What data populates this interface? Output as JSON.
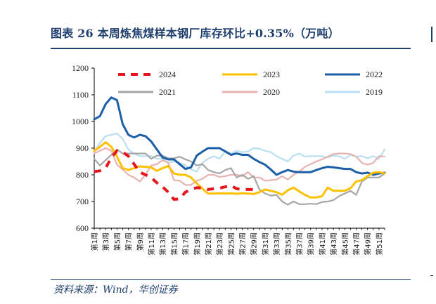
{
  "title": "图表 26  本周炼焦煤样本钢厂库存环比+0.35%（万吨）",
  "source": "资料来源：Wind，华创证券",
  "chart_data": {
    "type": "line",
    "title": "",
    "xlabel": "",
    "ylabel": "",
    "ylim": [
      600,
      1200
    ],
    "yticks": [
      600,
      700,
      800,
      900,
      1000,
      1100,
      1200
    ],
    "grid": false,
    "legend_position": "top",
    "x": [
      "第1周",
      "第2周",
      "第3周",
      "第4周",
      "第5周",
      "第6周",
      "第7周",
      "第8周",
      "第9周",
      "第10周",
      "第11周",
      "第12周",
      "第13周",
      "第14周",
      "第15周",
      "第16周",
      "第17周",
      "第18周",
      "第19周",
      "第20周",
      "第21周",
      "第22周",
      "第23周",
      "第24周",
      "第25周",
      "第26周",
      "第27周",
      "第28周",
      "第29周",
      "第30周",
      "第31周",
      "第32周",
      "第33周",
      "第34周",
      "第35周",
      "第36周",
      "第37周",
      "第38周",
      "第39周",
      "第40周",
      "第41周",
      "第42周",
      "第43周",
      "第44周",
      "第45周",
      "第46周",
      "第47周",
      "第48周",
      "第49周",
      "第50周",
      "第51周",
      "第52周"
    ],
    "x_tick_labels": [
      "第1周",
      "第3周",
      "第5周",
      "第7周",
      "第9周",
      "第11周",
      "第13周",
      "第15周",
      "第17周",
      "第19周",
      "第21周",
      "第23周",
      "第25周",
      "第27周",
      "第29周",
      "第31周",
      "第33周",
      "第35周",
      "第37周",
      "第39周",
      "第41周",
      "第43周",
      "第45周",
      "第47周",
      "第49周",
      "第51周"
    ],
    "series": [
      {
        "name": "2024",
        "color": "#e8141c",
        "dash": "dashed",
        "values": [
          812,
          815,
          825,
          865,
          890,
          885,
          870,
          840,
          810,
          800,
          790,
          770,
          755,
          735,
          708,
          710,
          735,
          745,
          752,
          750,
          745,
          748,
          750,
          755,
          760,
          748,
          745,
          745,
          745,
          null,
          null,
          null,
          null,
          null,
          null,
          null,
          null,
          null,
          null,
          null,
          null,
          null,
          null,
          null,
          null,
          null,
          null,
          null,
          null,
          null,
          null,
          null
        ]
      },
      {
        "name": "2023",
        "color": "#ffc000",
        "dash": "solid",
        "values": [
          890,
          905,
          922,
          905,
          868,
          825,
          818,
          825,
          832,
          830,
          828,
          815,
          825,
          833,
          805,
          800,
          800,
          790,
          768,
          748,
          730,
          730,
          731,
          730,
          731,
          729,
          731,
          730,
          728,
          735,
          745,
          740,
          735,
          725,
          742,
          752,
          738,
          725,
          715,
          715,
          720,
          752,
          740,
          740,
          740,
          750,
          775,
          780,
          795,
          808,
          810,
          805
        ]
      },
      {
        "name": "2022",
        "color": "#1c5fa8",
        "dash": "solid",
        "values": [
          1008,
          1020,
          1065,
          1090,
          1080,
          990,
          950,
          940,
          950,
          945,
          925,
          895,
          865,
          858,
          858,
          840,
          822,
          828,
          872,
          887,
          900,
          900,
          900,
          888,
          875,
          880,
          875,
          875,
          860,
          848,
          838,
          820,
          800,
          810,
          818,
          812,
          810,
          810,
          810,
          818,
          825,
          830,
          828,
          825,
          822,
          822,
          810,
          805,
          808,
          800,
          805,
          808
        ]
      },
      {
        "name": "2021",
        "color": "#a6a6a6",
        "dash": "solid",
        "values": [
          860,
          835,
          855,
          875,
          895,
          880,
          880,
          880,
          880,
          880,
          860,
          872,
          872,
          862,
          862,
          868,
          858,
          850,
          835,
          840,
          818,
          810,
          805,
          818,
          825,
          790,
          800,
          785,
          795,
          745,
          730,
          722,
          725,
          700,
          688,
          700,
          690,
          690,
          692,
          690,
          698,
          700,
          705,
          720,
          730,
          740,
          725,
          775,
          790,
          790,
          790,
          805
        ]
      },
      {
        "name": "2020",
        "color": "#e8b2b2",
        "dash": "solid",
        "values": [
          880,
          890,
          900,
          890,
          838,
          820,
          800,
          790,
          775,
          800,
          835,
          840,
          855,
          845,
          780,
          778,
          762,
          762,
          778,
          785,
          800,
          800,
          792,
          795,
          800,
          800,
          795,
          810,
          790,
          790,
          778,
          780,
          782,
          795,
          782,
          800,
          812,
          830,
          840,
          850,
          858,
          868,
          878,
          880,
          880,
          878,
          868,
          845,
          838,
          845,
          870,
          868
        ]
      },
      {
        "name": "2019",
        "color": "#b9dff0",
        "dash": "solid",
        "values": [
          885,
          920,
          945,
          950,
          955,
          935,
          895,
          880,
          870,
          870,
          870,
          860,
          860,
          845,
          850,
          845,
          835,
          820,
          812,
          845,
          860,
          870,
          860,
          888,
          880,
          890,
          885,
          888,
          900,
          898,
          890,
          885,
          870,
          860,
          850,
          872,
          880,
          868,
          870,
          870,
          870,
          865,
          872,
          870,
          860,
          875,
          868,
          870,
          862,
          870,
          860,
          895
        ]
      }
    ]
  }
}
